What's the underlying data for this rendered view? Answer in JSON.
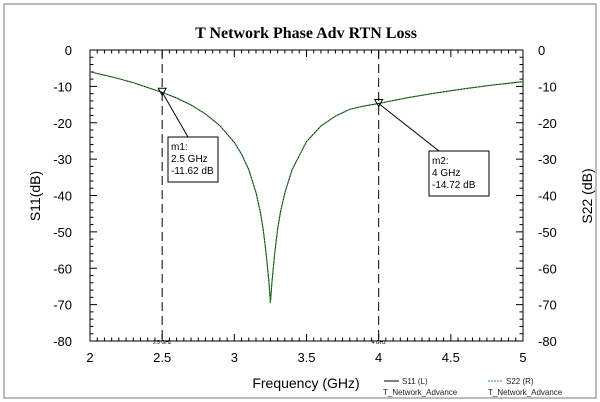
{
  "chart_data": {
    "type": "line",
    "title": "T Network Phase Adv RTN Loss",
    "xlabel": "Frequency (GHz)",
    "ylabel_left": "S11(dB)",
    "ylabel_right": "S22 (dB)",
    "xlim": [
      2,
      5
    ],
    "ylim": [
      -80,
      0
    ],
    "x_ticks": [
      "2",
      "2.5",
      "3",
      "3.5",
      "4",
      "4.5",
      "5"
    ],
    "y_ticks": [
      "0",
      "-10",
      "-20",
      "-30",
      "-40",
      "-50",
      "-60",
      "-70",
      "-80"
    ],
    "grid": false,
    "series": [
      {
        "name": "S11 (L)",
        "source": "T_Network_Advance",
        "color": "#000000",
        "x": [
          2.0,
          2.1,
          2.2,
          2.3,
          2.4,
          2.5,
          2.6,
          2.7,
          2.8,
          2.9,
          3.0,
          3.05,
          3.1,
          3.15,
          3.18,
          3.2,
          3.22,
          3.24,
          3.25,
          3.26,
          3.28,
          3.3,
          3.32,
          3.35,
          3.4,
          3.5,
          3.6,
          3.7,
          3.8,
          3.9,
          4.0,
          4.2,
          4.4,
          4.6,
          4.8,
          5.0
        ],
        "y": [
          -6.0,
          -6.9,
          -7.9,
          -9.0,
          -10.3,
          -11.62,
          -13.2,
          -15.1,
          -17.6,
          -20.8,
          -25.4,
          -28.6,
          -32.9,
          -39.2,
          -44.5,
          -49.3,
          -55.9,
          -64.0,
          -69.5,
          -64.0,
          -55.9,
          -49.3,
          -44.5,
          -39.2,
          -32.9,
          -25.2,
          -20.9,
          -18.2,
          -16.3,
          -15.4,
          -14.72,
          -13.1,
          -11.8,
          -10.6,
          -9.6,
          -8.7
        ]
      },
      {
        "name": "S22 (R)",
        "source": "T_Network_Advance",
        "color": "#2e9a2e",
        "x": [
          2.0,
          2.1,
          2.2,
          2.3,
          2.4,
          2.5,
          2.6,
          2.7,
          2.8,
          2.9,
          3.0,
          3.05,
          3.1,
          3.15,
          3.18,
          3.2,
          3.22,
          3.24,
          3.25,
          3.26,
          3.28,
          3.3,
          3.32,
          3.35,
          3.4,
          3.5,
          3.6,
          3.7,
          3.8,
          3.9,
          4.0,
          4.2,
          4.4,
          4.6,
          4.8,
          5.0
        ],
        "y": [
          -6.0,
          -6.9,
          -7.9,
          -9.0,
          -10.3,
          -11.62,
          -13.2,
          -15.1,
          -17.6,
          -20.8,
          -25.4,
          -28.6,
          -32.9,
          -39.2,
          -44.5,
          -49.3,
          -55.9,
          -64.0,
          -69.5,
          -64.0,
          -55.9,
          -49.3,
          -44.5,
          -39.2,
          -32.9,
          -25.2,
          -20.9,
          -18.2,
          -16.3,
          -15.4,
          -14.72,
          -13.1,
          -11.8,
          -10.6,
          -9.6,
          -8.7
        ]
      }
    ],
    "markers": [
      {
        "name": "m1",
        "x": 2.5,
        "y": -11.62,
        "lines": [
          "m1:",
          "2.5 GHz",
          "-11.62 dB"
        ],
        "axis_label": "2.5 GHz"
      },
      {
        "name": "m2",
        "x": 4.0,
        "y": -14.72,
        "lines": [
          "m2:",
          "4 GHz",
          "-14.72 dB"
        ],
        "axis_label": "4 GHz"
      }
    ]
  }
}
